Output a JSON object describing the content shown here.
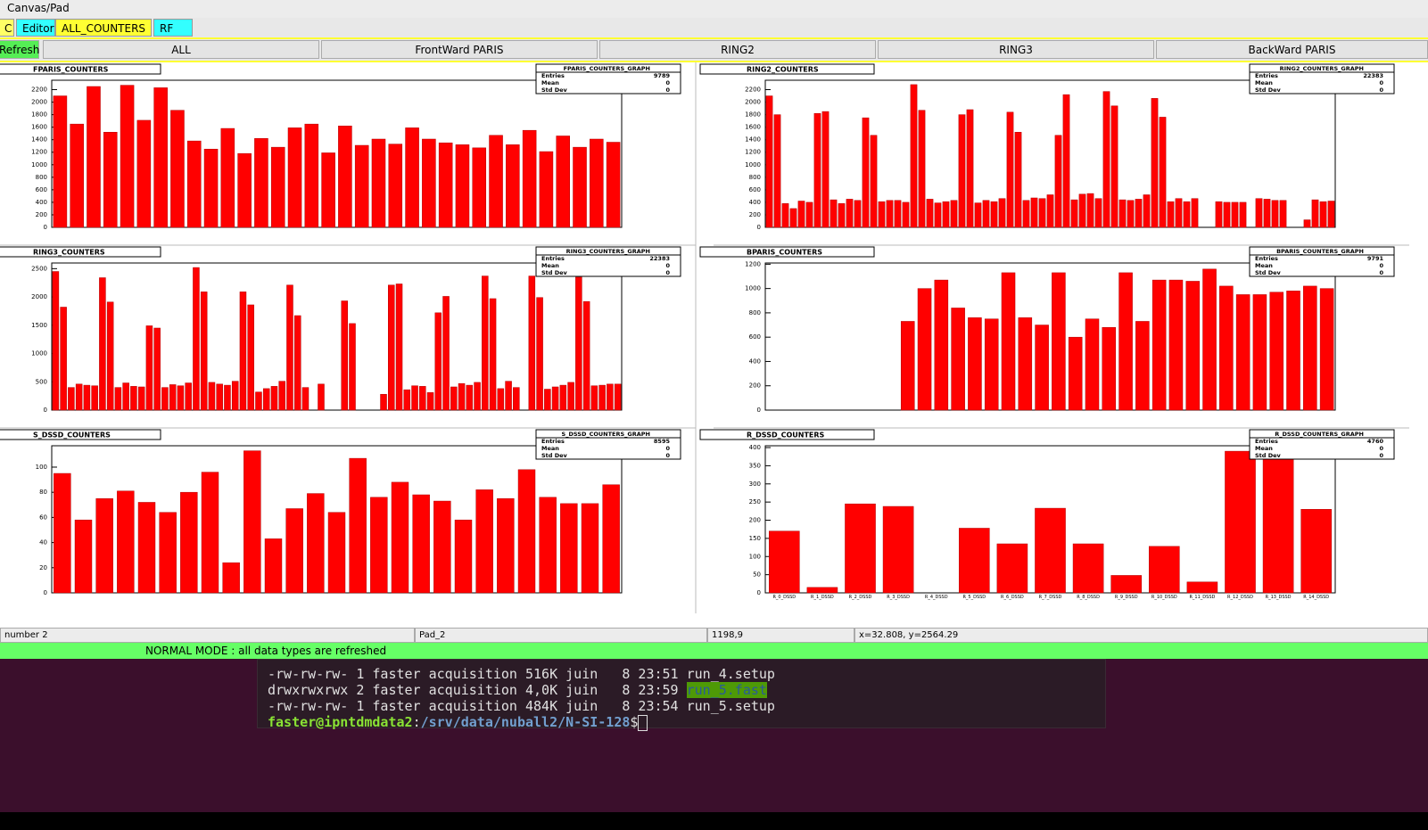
{
  "window": {
    "title": "Canvas/Pad"
  },
  "tabs": [
    "C",
    "Editor",
    "ALL_COUNTERS",
    "RF"
  ],
  "buttons": [
    "Refresh",
    "ALL",
    "FrontWard PARIS",
    "RING2",
    "RING3",
    "BackWard PARIS"
  ],
  "stats_labels": [
    "Entries",
    "Mean",
    "Std Dev"
  ],
  "chart_data": [
    {
      "type": "bar",
      "title": "FPARIS_COUNTERS",
      "color": "#ff0000",
      "ylim": [
        0,
        2350
      ],
      "yticks": [
        0,
        200,
        400,
        600,
        800,
        1000,
        1200,
        1400,
        1600,
        1800,
        2000,
        2200
      ],
      "stats": {
        "title": "FPARIS_COUNTERS_GRAPH",
        "entries": 9789,
        "mean": 0,
        "std_dev": 0
      },
      "values": [
        2100,
        1650,
        2250,
        1520,
        2270,
        1710,
        2230,
        1870,
        1380,
        1250,
        1580,
        1180,
        1420,
        1280,
        1590,
        1650,
        1190,
        1620,
        1310,
        1410,
        1330,
        1590,
        1410,
        1350,
        1320,
        1270,
        1470,
        1320,
        1550,
        1210,
        1460,
        1280,
        1410,
        1360
      ]
    },
    {
      "type": "bar",
      "title": "RING2_COUNTERS",
      "color": "#ff0000",
      "ylim": [
        0,
        2350
      ],
      "yticks": [
        0,
        200,
        400,
        600,
        800,
        1000,
        1200,
        1400,
        1600,
        1800,
        2000,
        2200
      ],
      "stats": {
        "title": "RING2_COUNTERS_GRAPH",
        "entries": 22383,
        "mean": 0,
        "std_dev": 0
      },
      "values": [
        2100,
        1800,
        380,
        300,
        420,
        400,
        1820,
        1850,
        440,
        380,
        450,
        430,
        1750,
        1470,
        410,
        430,
        430,
        400,
        2280,
        1870,
        450,
        390,
        410,
        430,
        1800,
        1880,
        390,
        430,
        410,
        460,
        1840,
        1520,
        430,
        470,
        460,
        520,
        1470,
        2120,
        440,
        530,
        540,
        460,
        2170,
        1940,
        440,
        430,
        450,
        520,
        2060,
        1760,
        410,
        460,
        410,
        460,
        0,
        0,
        410,
        400,
        400,
        400,
        0,
        460,
        450,
        430,
        430,
        0,
        0,
        120,
        440,
        410,
        420
      ]
    },
    {
      "type": "bar",
      "title": "RING3_COUNTERS",
      "color": "#ff0000",
      "ylim": [
        0,
        2600
      ],
      "yticks": [
        0,
        500,
        1000,
        1500,
        2000,
        2500
      ],
      "stats": {
        "title": "RING3_COUNTERS_GRAPH",
        "entries": 22383,
        "mean": 0,
        "std_dev": 0
      },
      "values": [
        2450,
        1820,
        400,
        460,
        440,
        430,
        2340,
        1910,
        400,
        480,
        420,
        410,
        1490,
        1450,
        400,
        450,
        430,
        480,
        2520,
        2090,
        490,
        460,
        440,
        510,
        2090,
        1860,
        320,
        380,
        420,
        510,
        2210,
        1670,
        400,
        0,
        460,
        0,
        0,
        1930,
        1530,
        0,
        0,
        0,
        280,
        2210,
        2230,
        360,
        430,
        420,
        310,
        1720,
        2010,
        410,
        470,
        440,
        490,
        2370,
        1970,
        380,
        510,
        400,
        0,
        2370,
        1990,
        370,
        410,
        440,
        490,
        2350,
        1920,
        430,
        440,
        460,
        460
      ]
    },
    {
      "type": "bar",
      "title": "BPARIS_COUNTERS",
      "color": "#ff0000",
      "ylim": [
        0,
        1210
      ],
      "yticks": [
        0,
        200,
        400,
        600,
        800,
        1000,
        1200
      ],
      "stats": {
        "title": "BPARIS_COUNTERS_GRAPH",
        "entries": 9791,
        "mean": 0,
        "std_dev": 0
      },
      "values": [
        0,
        0,
        0,
        0,
        0,
        0,
        0,
        0,
        730,
        1000,
        1070,
        840,
        760,
        750,
        1130,
        760,
        700,
        1130,
        600,
        750,
        680,
        1130,
        730,
        1070,
        1070,
        1060,
        1160,
        1020,
        950,
        950,
        970,
        980,
        1020,
        1000
      ]
    },
    {
      "type": "bar",
      "title": "S_DSSD_COUNTERS",
      "color": "#ff0000",
      "ylim": [
        0,
        117
      ],
      "yticks": [
        0,
        20,
        40,
        60,
        80,
        100
      ],
      "stats": {
        "title": "S_DSSD_COUNTERS_GRAPH",
        "entries": 8595,
        "mean": 0,
        "std_dev": 0
      },
      "values": [
        95,
        58,
        75,
        81,
        72,
        64,
        80,
        96,
        24,
        113,
        43,
        67,
        79,
        64,
        107,
        76,
        88,
        78,
        73,
        58,
        82,
        75,
        98,
        76,
        71,
        71,
        86
      ]
    },
    {
      "type": "bar",
      "title": "R_DSSD_COUNTERS",
      "color": "#ff0000",
      "ylim": [
        0,
        405
      ],
      "yticks": [
        0,
        50,
        100,
        150,
        200,
        250,
        300,
        350,
        400
      ],
      "stats": {
        "title": "R_DSSD_COUNTERS_GRAPH",
        "entries": 4760,
        "mean": 0,
        "std_dev": 0
      },
      "categories": [
        "R_0_DSSD",
        "R_1_DSSD",
        "R_2_DSSD",
        "R_3_DSSD",
        "R_4_DSSD",
        "R_5_DSSD",
        "R_6_DSSD",
        "R_7_DSSD",
        "R_8_DSSD",
        "R_9_DSSD",
        "R_10_DSSD",
        "R_11_DSSD",
        "R_12_DSSD",
        "R_13_DSSD",
        "R_14_DSSD"
      ],
      "values": [
        170,
        15,
        245,
        238,
        0,
        178,
        135,
        233,
        135,
        48,
        128,
        30,
        390,
        390,
        230
      ]
    }
  ],
  "status_bar": [
    "number 2",
    "Pad_2",
    "1198,9",
    "x=32.808, y=2564.29"
  ],
  "message": "NORMAL MODE : all data types are refreshed",
  "terminal": {
    "lines": [
      "-rw-rw-rw- 1 faster acquisition 516K juin   8 23:51 run_4.setup",
      "drwxrwxrwx 2 faster acquisition 4,0K juin   8 23:59 ",
      "-rw-rw-rw- 1 faster acquisition 484K juin   8 23:54 run_5.setup"
    ],
    "highlight": "run_5.fast",
    "prompt_user": "faster@ipntdmdata2",
    "prompt_sep": ":",
    "prompt_path": "/srv/data/nuball2/N-SI-128",
    "prompt_end": "$"
  }
}
